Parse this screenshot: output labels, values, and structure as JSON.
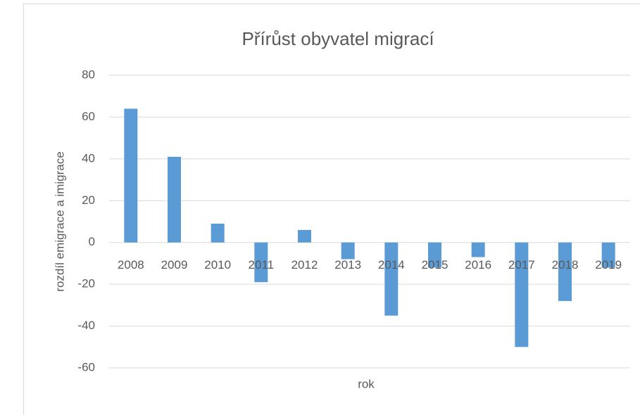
{
  "chart_data": {
    "type": "bar",
    "title": "Přírůst obyvatel migrací",
    "x_label": "rok",
    "y_label": "rozdíl emigrace a imigrace",
    "categories": [
      "2008",
      "2009",
      "2010",
      "2011",
      "2012",
      "2013",
      "2014",
      "2015",
      "2016",
      "2017",
      "2018",
      "2019"
    ],
    "values": [
      64,
      41,
      9,
      -19,
      6,
      -8,
      -35,
      -12,
      -7,
      -50,
      -28,
      -12
    ],
    "color": "#5b9bd5",
    "ylim": [
      -60,
      80
    ],
    "yticks": [
      -60,
      -40,
      -20,
      0,
      20,
      40,
      60,
      80
    ],
    "grid": true
  }
}
